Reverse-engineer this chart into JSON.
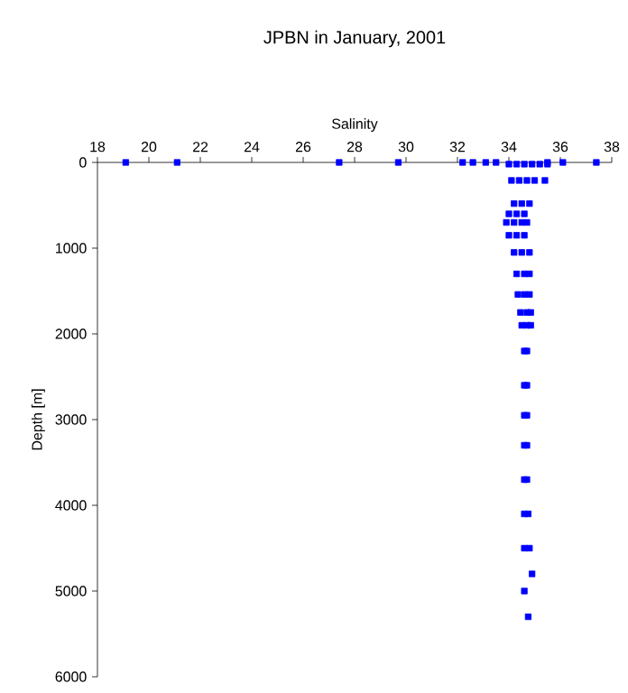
{
  "chart_data": {
    "type": "scatter",
    "title": "JPBN in January, 2001",
    "xlabel": "Salinity",
    "ylabel": "Depth [m]",
    "color": "#0000ff",
    "marker": "square",
    "grid": false,
    "xlim": [
      18,
      38
    ],
    "ylim": [
      6000,
      0
    ],
    "xticks": [
      18,
      20,
      22,
      24,
      26,
      28,
      30,
      32,
      34,
      36,
      38
    ],
    "yticks": [
      0,
      1000,
      2000,
      3000,
      4000,
      5000,
      6000
    ],
    "x": [
      19.1,
      21.1,
      27.4,
      29.7,
      32.2,
      32.6,
      33.1,
      33.5,
      36.1,
      37.4,
      35.5,
      34.0,
      34.3,
      34.6,
      34.9,
      35.2,
      35.5,
      34.1,
      34.4,
      34.7,
      35.0,
      35.4,
      34.2,
      34.5,
      34.8,
      34.0,
      34.3,
      34.6,
      33.9,
      34.2,
      34.5,
      34.7,
      34.0,
      34.3,
      34.6,
      34.2,
      34.5,
      34.8,
      34.3,
      34.6,
      34.8,
      34.35,
      34.6,
      34.8,
      34.45,
      34.7,
      34.85,
      34.5,
      34.7,
      34.85,
      34.6,
      34.7,
      34.6,
      34.7,
      34.6,
      34.7,
      34.6,
      34.7,
      34.6,
      34.7,
      34.6,
      34.75,
      34.6,
      34.8,
      34.9,
      34.6,
      34.75
    ],
    "values": [
      0,
      0,
      0,
      0,
      0,
      0,
      0,
      0,
      0,
      0,
      0,
      20,
      20,
      20,
      20,
      20,
      20,
      210,
      210,
      210,
      210,
      210,
      480,
      480,
      480,
      600,
      600,
      600,
      700,
      700,
      700,
      700,
      850,
      850,
      850,
      1050,
      1050,
      1050,
      1300,
      1300,
      1300,
      1540,
      1540,
      1540,
      1750,
      1750,
      1750,
      1900,
      1900,
      1900,
      2200,
      2200,
      2600,
      2600,
      2950,
      2950,
      3300,
      3300,
      3700,
      3700,
      4100,
      4100,
      4500,
      4500,
      4800,
      5000,
      5300
    ]
  }
}
